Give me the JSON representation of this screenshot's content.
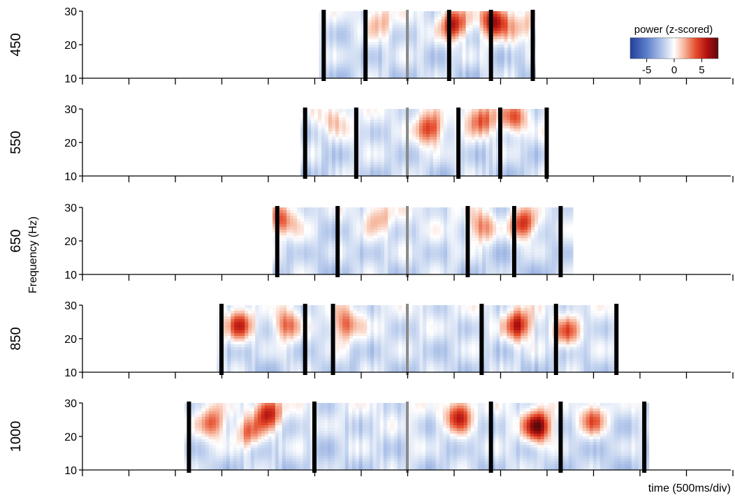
{
  "chart_data": {
    "type": "heatmap",
    "ylabel": "Frequency (Hz)",
    "xlabel": "time (500ms/div)",
    "colorbar": {
      "title": "power (z-scored)",
      "ticks": [
        "-5",
        "0",
        "5"
      ],
      "min": -8,
      "max": 8,
      "colors": [
        "#223f9c",
        "#5d7fca",
        "#b8cbec",
        "#ffffff",
        "#f6b49a",
        "#e44a2a",
        "#b01010",
        "#5a0a0a"
      ]
    },
    "y_ticks": [
      "10",
      "20",
      "30"
    ],
    "ylim": [
      10,
      30
    ],
    "time_axis": {
      "division_ms": 500,
      "tick_count": 15
    },
    "panels": [
      {
        "label": "450",
        "time_range_ms": [
          -950,
          1350
        ],
        "event_markers_ms": [
          -900,
          -450,
          0,
          450,
          900,
          1350
        ],
        "center_marker_ms": 0,
        "hotspots": [
          {
            "t_ms": 500,
            "f_hz": 26,
            "z": 5.5
          },
          {
            "t_ms": 950,
            "f_hz": 27,
            "z": 6.5
          },
          {
            "t_ms": -300,
            "f_hz": 27,
            "z": 1.5
          },
          {
            "t_ms": 1250,
            "f_hz": 25,
            "z": 1.5
          }
        ]
      },
      {
        "label": "550",
        "time_range_ms": [
          -1150,
          1500
        ],
        "event_markers_ms": [
          -1100,
          -550,
          0,
          550,
          1000,
          1500
        ],
        "center_marker_ms": 0,
        "hotspots": [
          {
            "t_ms": 250,
            "f_hz": 24,
            "z": 4.5
          },
          {
            "t_ms": 800,
            "f_hz": 27,
            "z": 4.0
          },
          {
            "t_ms": 1150,
            "f_hz": 27,
            "z": 3.5
          },
          {
            "t_ms": -800,
            "f_hz": 27,
            "z": 1.5
          }
        ]
      },
      {
        "label": "650",
        "time_range_ms": [
          -1450,
          1750
        ],
        "event_markers_ms": [
          -1400,
          -750,
          0,
          650,
          1150,
          1650
        ],
        "center_marker_ms": 0,
        "hotspots": [
          {
            "t_ms": -1350,
            "f_hz": 26,
            "z": 3.5
          },
          {
            "t_ms": 800,
            "f_hz": 24,
            "z": 3.0
          },
          {
            "t_ms": 1250,
            "f_hz": 25,
            "z": 5.0
          },
          {
            "t_ms": -300,
            "f_hz": 27,
            "z": 1.5
          }
        ]
      },
      {
        "label": "850",
        "time_range_ms": [
          -2050,
          2250
        ],
        "event_markers_ms": [
          -2000,
          -1100,
          -800,
          0,
          800,
          1600,
          2250
        ],
        "center_marker_ms": 0,
        "hotspots": [
          {
            "t_ms": -1800,
            "f_hz": 24,
            "z": 4.5
          },
          {
            "t_ms": -1300,
            "f_hz": 24,
            "z": 3.0
          },
          {
            "t_ms": -650,
            "f_hz": 24,
            "z": 3.5
          },
          {
            "t_ms": 1200,
            "f_hz": 24,
            "z": 5.5
          },
          {
            "t_ms": 1700,
            "f_hz": 22,
            "z": 3.5
          }
        ]
      },
      {
        "label": "1000",
        "time_range_ms": [
          -2400,
          2600
        ],
        "event_markers_ms": [
          -2350,
          -1000,
          0,
          900,
          1650,
          2550
        ],
        "center_marker_ms": 0,
        "hotspots": [
          {
            "t_ms": -2100,
            "f_hz": 24,
            "z": 3.5
          },
          {
            "t_ms": -1700,
            "f_hz": 21,
            "z": 3.0
          },
          {
            "t_ms": -1500,
            "f_hz": 27,
            "z": 5.5
          },
          {
            "t_ms": 550,
            "f_hz": 26,
            "z": 5.0
          },
          {
            "t_ms": 1400,
            "f_hz": 23,
            "z": 7.5
          },
          {
            "t_ms": 2000,
            "f_hz": 25,
            "z": 3.5
          }
        ]
      }
    ]
  }
}
